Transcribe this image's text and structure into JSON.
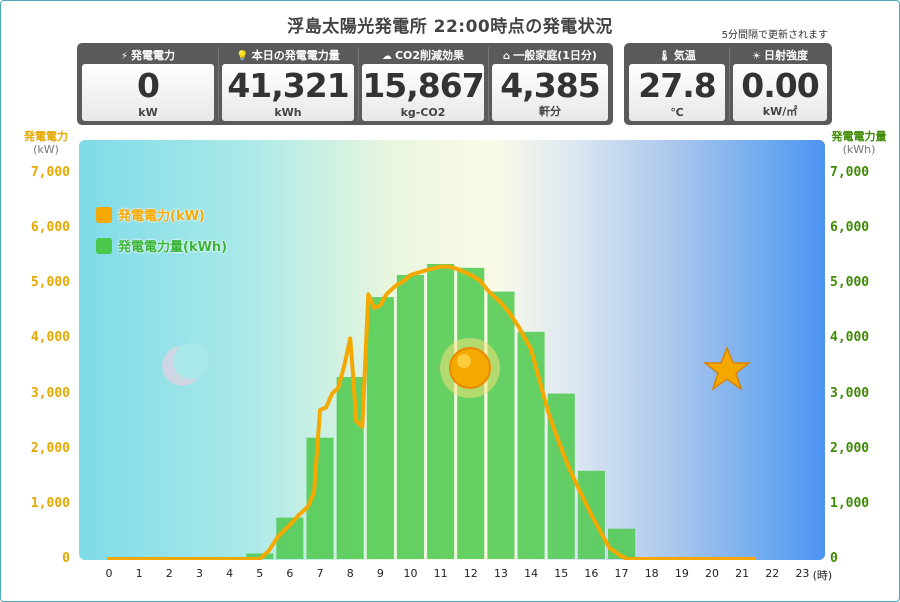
{
  "header": {
    "title": "浮島太陽光発電所 22:00時点の発電状況",
    "update_note": "5分間隔で更新されます"
  },
  "cards": [
    {
      "label": "発電電力",
      "icon": "lightning-icon",
      "value": "0",
      "unit": "kW"
    },
    {
      "label": "本日の発電電力量",
      "icon": "bulb-icon",
      "value": "41,321",
      "unit": "kWh"
    },
    {
      "label": "CO2削減効果",
      "icon": "cloud-icon",
      "value": "15,867",
      "unit": "kg-CO2"
    },
    {
      "label": "一般家庭(1日分)",
      "icon": "house-icon",
      "value": "4,385",
      "unit": "軒分"
    }
  ],
  "weather": [
    {
      "label": "気温",
      "icon": "thermometer-icon",
      "value": "27.8",
      "unit": "℃"
    },
    {
      "label": "日射強度",
      "icon": "sun-small-icon",
      "value": "0.00",
      "unit": "kW/㎡"
    }
  ],
  "colors": {
    "power_line": "#f5a800",
    "energy_bar": "#4cc94c",
    "left_axis": "#e6a700",
    "right_axis": "#3c8a00"
  },
  "chart_data": {
    "type": "bar",
    "categories": [
      "0",
      "1",
      "2",
      "3",
      "4",
      "5",
      "6",
      "7",
      "8",
      "9",
      "10",
      "11",
      "12",
      "13",
      "14",
      "15",
      "16",
      "17",
      "18",
      "19",
      "20",
      "21",
      "22",
      "23"
    ],
    "x_unit_label": "(時)",
    "ylabel_left": "発電電力",
    "ylabel_left_unit": "(kW)",
    "ylabel_right": "発電電力量",
    "ylabel_right_unit": "(kWh)",
    "ylim": [
      0,
      7000
    ],
    "yticks": [
      0,
      1000,
      2000,
      3000,
      4000,
      5000,
      6000,
      7000
    ],
    "ytick_labels": [
      "0",
      "1,000",
      "2,000",
      "3,000",
      "4,000",
      "5,000",
      "6,000",
      "7,000"
    ],
    "legend": [
      "発電電力(kW)",
      "発電電力量(kWh)"
    ],
    "legend_position": "top-left",
    "grid": false,
    "series": [
      {
        "name": "発電電力量(kWh)",
        "kind": "bar",
        "axis": "right",
        "values": [
          0,
          0,
          0,
          0,
          0,
          100,
          750,
          2200,
          3300,
          4750,
          5150,
          5350,
          5280,
          4850,
          4120,
          3000,
          1600,
          550,
          0,
          0,
          0,
          0,
          0,
          0
        ]
      },
      {
        "name": "発電電力(kW)",
        "kind": "line",
        "axis": "left",
        "x": [
          0,
          4.5,
          5,
          5.3,
          5.6,
          6,
          6.3,
          6.6,
          6.8,
          7,
          7.2,
          7.4,
          7.6,
          7.8,
          8,
          8.1,
          8.2,
          8.4,
          8.6,
          8.8,
          9,
          9.2,
          9.5,
          9.8,
          10,
          10.3,
          10.6,
          11,
          11.3,
          11.6,
          12,
          12.3,
          12.6,
          13,
          13.3,
          13.6,
          14,
          14.3,
          14.6,
          15,
          15.3,
          15.6,
          16,
          16.3,
          16.6,
          17,
          17.2,
          17.4,
          17.5,
          18,
          19,
          20,
          21,
          21.4
        ],
        "y": [
          0,
          0,
          0,
          150,
          400,
          620,
          800,
          950,
          1200,
          2700,
          2750,
          3000,
          3100,
          3500,
          4000,
          3300,
          2500,
          2400,
          4800,
          4550,
          4600,
          4800,
          4950,
          5050,
          5150,
          5200,
          5250,
          5300,
          5300,
          5250,
          5150,
          5050,
          4850,
          4650,
          4450,
          4200,
          3800,
          3200,
          2600,
          2000,
          1600,
          1250,
          800,
          500,
          200,
          50,
          0,
          0,
          0,
          0,
          0,
          0,
          0,
          0
        ]
      }
    ]
  }
}
